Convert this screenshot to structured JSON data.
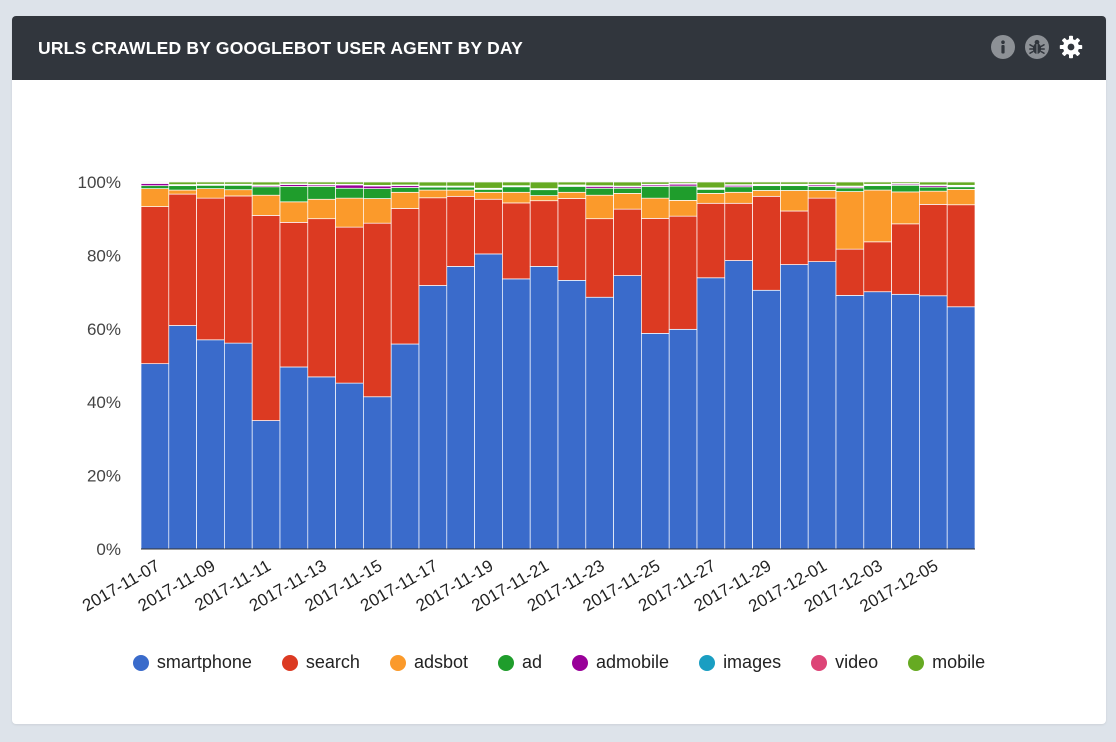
{
  "header": {
    "title": "URLS CRAWLED BY GOOGLEBOT USER AGENT BY DAY",
    "icons": [
      "info-icon",
      "bug-icon",
      "gear-icon"
    ]
  },
  "chart_data": {
    "type": "bar",
    "stacked": true,
    "percent": true,
    "title": "URLS CRAWLED BY GOOGLEBOT USER AGENT BY DAY",
    "xlabel": "",
    "ylabel": "",
    "ylim": [
      0,
      100
    ],
    "yticks": [
      "0%",
      "20%",
      "40%",
      "60%",
      "80%",
      "100%"
    ],
    "xtick_labels": [
      "2017-11-07",
      "2017-11-09",
      "2017-11-11",
      "2017-11-13",
      "2017-11-15",
      "2017-11-17",
      "2017-11-19",
      "2017-11-21",
      "2017-11-23",
      "2017-11-25",
      "2017-11-27",
      "2017-11-29",
      "2017-12-01",
      "2017-12-03",
      "2017-12-05"
    ],
    "legend_position": "bottom",
    "categories": [
      "2017-11-07",
      "2017-11-08",
      "2017-11-09",
      "2017-11-10",
      "2017-11-11",
      "2017-11-12",
      "2017-11-13",
      "2017-11-14",
      "2017-11-15",
      "2017-11-16",
      "2017-11-17",
      "2017-11-18",
      "2017-11-19",
      "2017-11-20",
      "2017-11-21",
      "2017-11-22",
      "2017-11-23",
      "2017-11-24",
      "2017-11-25",
      "2017-11-26",
      "2017-11-27",
      "2017-11-28",
      "2017-11-29",
      "2017-11-30",
      "2017-12-01",
      "2017-12-02",
      "2017-12-03",
      "2017-12-04",
      "2017-12-05",
      "2017-12-06"
    ],
    "series": [
      {
        "name": "smartphone",
        "color": "#3a6bcb",
        "values": [
          50.5,
          60.9,
          57.0,
          56.1,
          35.0,
          49.6,
          46.9,
          45.2,
          41.4,
          55.8,
          71.8,
          77.0,
          80.4,
          73.6,
          77.0,
          73.2,
          68.6,
          74.5,
          58.7,
          59.8,
          73.9,
          78.6,
          70.5,
          77.5,
          78.3,
          69.1,
          70.1,
          69.4,
          69.0,
          66.0
        ]
      },
      {
        "name": "search",
        "color": "#dc3a22",
        "values": [
          42.8,
          35.8,
          38.6,
          40.1,
          55.9,
          39.4,
          43.1,
          42.5,
          47.2,
          36.9,
          23.9,
          19.1,
          14.9,
          20.7,
          17.9,
          22.3,
          21.4,
          18.1,
          31.3,
          30.8,
          20.3,
          15.6,
          25.6,
          14.6,
          17.3,
          12.6,
          13.6,
          19.2,
          24.9,
          27.8
        ]
      },
      {
        "name": "adsbot",
        "color": "#fb9a2b",
        "values": [
          4.9,
          1.1,
          2.6,
          1.7,
          5.5,
          5.6,
          5.3,
          7.9,
          6.7,
          4.4,
          2.1,
          1.7,
          1.9,
          2.9,
          1.4,
          1.7,
          6.4,
          4.3,
          5.5,
          4.3,
          2.7,
          3.0,
          1.6,
          5.6,
          2.1,
          15.7,
          14.1,
          8.7,
          3.6,
          4.2
        ]
      },
      {
        "name": "ad",
        "color": "#1f9d2c",
        "values": [
          0.8,
          1.2,
          0.9,
          1.2,
          2.3,
          4.2,
          3.5,
          2.7,
          2.7,
          1.3,
          0.8,
          0.8,
          0.8,
          1.5,
          1.6,
          1.6,
          1.9,
          1.4,
          3.2,
          3.9,
          1.1,
          1.5,
          1.3,
          1.3,
          1.1,
          1.0,
          1.2,
          1.8,
          1.1,
          0.7
        ]
      },
      {
        "name": "admobile",
        "color": "#990099",
        "values": [
          0.6,
          0.1,
          0.1,
          0.1,
          0.3,
          0.5,
          0.4,
          0.9,
          0.7,
          0.5,
          0.1,
          0.1,
          0.1,
          0.1,
          0.1,
          0.2,
          0.5,
          0.4,
          0.4,
          0.5,
          0.2,
          0.4,
          0.2,
          0.2,
          0.4,
          0.3,
          0.2,
          0.3,
          0.4,
          0.2
        ]
      },
      {
        "name": "images",
        "color": "#1a9ec2",
        "values": [
          0.1,
          0.1,
          0.1,
          0.1,
          0.1,
          0.1,
          0.1,
          0.1,
          0.1,
          0.1,
          0.1,
          0.1,
          0.1,
          0.1,
          0.1,
          0.1,
          0.1,
          0.1,
          0.1,
          0.1,
          0.1,
          0.1,
          0.1,
          0.1,
          0.1,
          0.1,
          0.1,
          0.1,
          0.1,
          0.1
        ]
      },
      {
        "name": "video",
        "color": "#dd4477",
        "values": [
          0.1,
          0.1,
          0.1,
          0.1,
          0.1,
          0.1,
          0.1,
          0.1,
          0.1,
          0.1,
          0.1,
          0.1,
          0.1,
          0.1,
          0.1,
          0.1,
          0.1,
          0.1,
          0.1,
          0.1,
          0.1,
          0.1,
          0.1,
          0.1,
          0.1,
          0.1,
          0.1,
          0.1,
          0.1,
          0.1
        ]
      },
      {
        "name": "mobile",
        "color": "#66aa22",
        "values": [
          0.2,
          0.7,
          0.6,
          0.6,
          0.8,
          0.5,
          0.6,
          0.6,
          0.9,
          0.8,
          1.1,
          1.1,
          1.7,
          1.0,
          1.8,
          0.8,
          1.0,
          1.1,
          0.6,
          0.4,
          1.6,
          0.7,
          0.6,
          0.6,
          0.6,
          1.1,
          0.6,
          0.4,
          0.8,
          0.9
        ]
      }
    ]
  }
}
